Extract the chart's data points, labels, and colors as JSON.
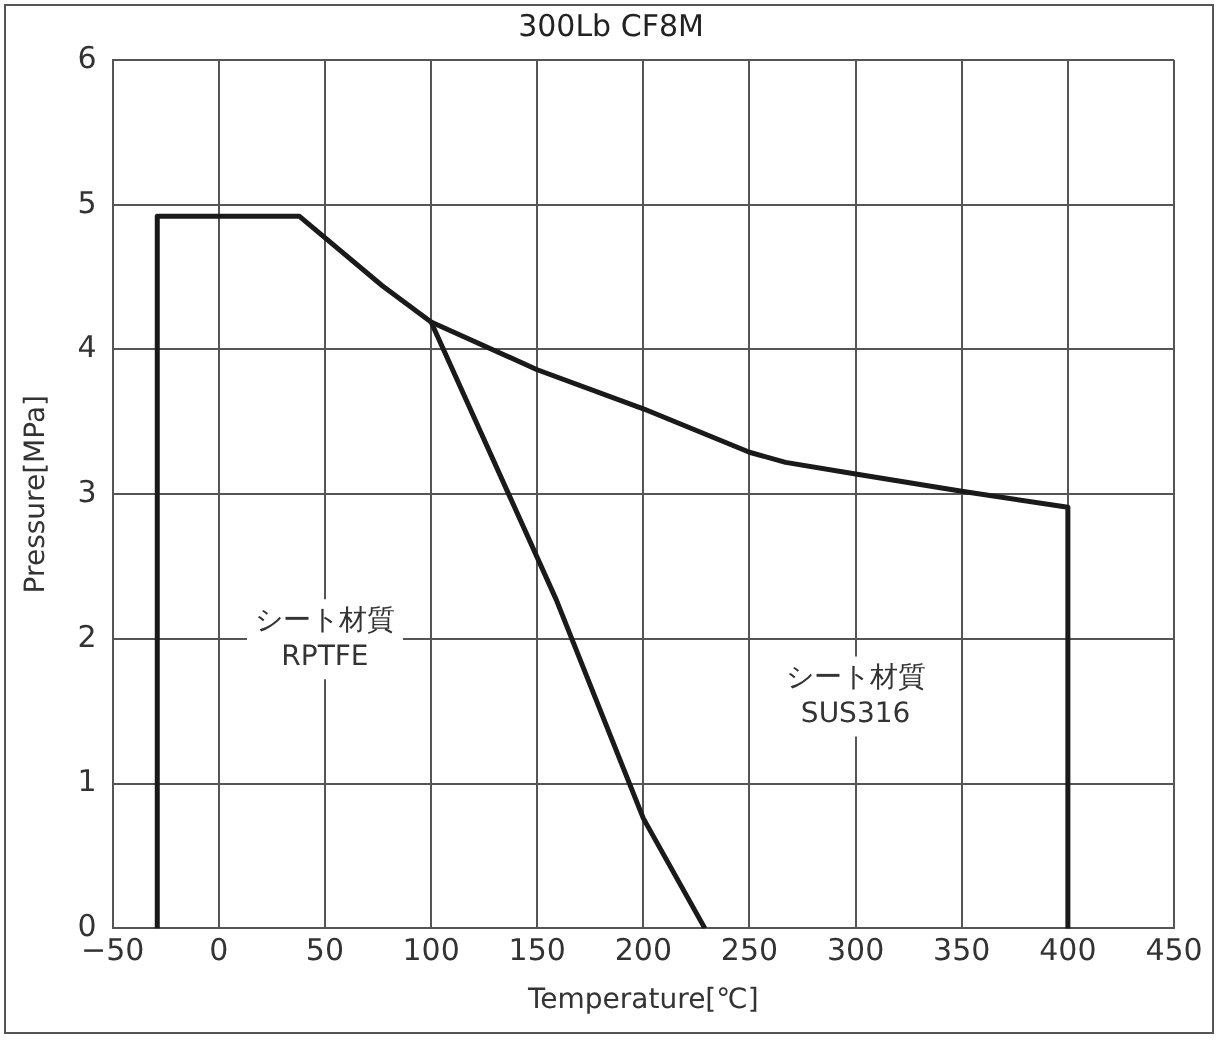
{
  "chart_data": {
    "type": "line",
    "title": "300Lb CF8M",
    "xlabel": "Temperature[℃]",
    "ylabel": "Pressure[MPa]",
    "series": [
      {
        "color": "#1a1a1a",
        "x": [
          -29,
          -29,
          38,
          77,
          100,
          159,
          200,
          229
        ],
        "values": [
          0,
          4.92,
          4.92,
          4.44,
          4.19,
          2.27,
          0.76,
          0
        ]
      },
      {
        "color": "#1a1a1a",
        "x": [
          100,
          150,
          200,
          250,
          267,
          300,
          350,
          400,
          400
        ],
        "values": [
          4.19,
          3.86,
          3.59,
          3.29,
          3.22,
          3.14,
          3.02,
          2.91,
          0
        ]
      }
    ],
    "xlim": [
      -50,
      450
    ],
    "xticks": [
      {
        "value": -50,
        "label": "−50"
      },
      0,
      50,
      100,
      150,
      200,
      250,
      300,
      350,
      400,
      450
    ],
    "ylim": [
      0,
      6
    ],
    "yticks": [
      0,
      1,
      2,
      3,
      4,
      5,
      6
    ],
    "annotations": [
      "シート材質\nRPTFE",
      "シート材質\nSUS316"
    ],
    "grid": true,
    "legend": false,
    "marker": "none",
    "line_style": "solid"
  }
}
